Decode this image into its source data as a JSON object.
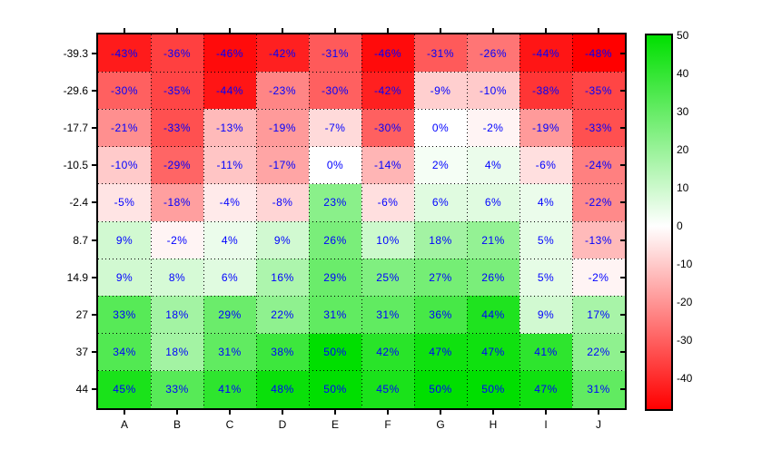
{
  "chart_data": {
    "type": "heatmap",
    "title": "",
    "xlabel": "",
    "ylabel": "",
    "x_categories": [
      "A",
      "B",
      "C",
      "D",
      "E",
      "F",
      "G",
      "H",
      "I",
      "J"
    ],
    "y_categories": [
      "-39.3",
      "-29.6",
      "-17.7",
      "-10.5",
      "-2.4",
      "8.7",
      "14.9",
      "27",
      "37",
      "44"
    ],
    "values": [
      [
        -43,
        -36,
        -46,
        -42,
        -31,
        -46,
        -31,
        -26,
        -44,
        -48
      ],
      [
        -30,
        -35,
        -44,
        -23,
        -30,
        -42,
        -9,
        -10,
        -38,
        -35
      ],
      [
        -21,
        -33,
        -13,
        -19,
        -7,
        -30,
        0,
        -2,
        -19,
        -33
      ],
      [
        -10,
        -29,
        -11,
        -17,
        0,
        -14,
        2,
        4,
        -6,
        -24
      ],
      [
        -5,
        -18,
        -4,
        -8,
        23,
        -6,
        6,
        6,
        4,
        -22
      ],
      [
        9,
        -2,
        4,
        9,
        26,
        10,
        18,
        21,
        5,
        -13
      ],
      [
        9,
        8,
        6,
        16,
        29,
        25,
        27,
        26,
        5,
        -2
      ],
      [
        33,
        18,
        29,
        22,
        31,
        31,
        36,
        44,
        9,
        17
      ],
      [
        34,
        18,
        31,
        38,
        50,
        42,
        47,
        47,
        41,
        22
      ],
      [
        45,
        33,
        41,
        48,
        50,
        45,
        50,
        50,
        47,
        31
      ]
    ],
    "cell_label_suffix": "%",
    "grid": "dotted",
    "legend_position": "right-colorbar",
    "colorbar": {
      "tick_labels": [
        "50",
        "40",
        "30",
        "20",
        "10",
        "0",
        "-10",
        "-20",
        "-30",
        "-40"
      ],
      "ticks": [
        50,
        40,
        30,
        20,
        10,
        0,
        -10,
        -20,
        -30,
        -40
      ],
      "min": -48,
      "max": 50
    },
    "colors": {
      "positive_max": "#00DF00",
      "zero": "#FFFFFF",
      "negative_min": "#FF0000",
      "cell_text": "#0000FF",
      "axis_text": "#000000",
      "grid_line": "#000000"
    }
  }
}
